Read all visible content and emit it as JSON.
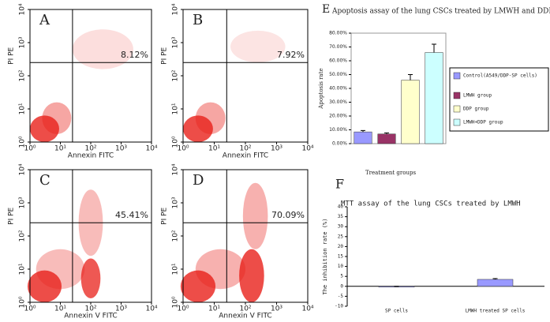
{
  "chart_data": [
    {
      "type": "flow",
      "panel": "A",
      "x_label": "Annexin FITC",
      "y_label": "PI PE",
      "annotation": "8.12%",
      "log_scale": true,
      "xlim": [
        1,
        10000
      ],
      "ylim": [
        1,
        10000
      ],
      "xticks": [
        {
          "value": 1,
          "label": "10⁰"
        },
        {
          "value": 10,
          "label": "10¹"
        },
        {
          "value": 100,
          "label": "10²"
        },
        {
          "value": 1000,
          "label": "10³"
        },
        {
          "value": 10000,
          "label": "10⁴"
        }
      ],
      "yticks": [
        {
          "value": 1,
          "label": "10⁰"
        },
        {
          "value": 10,
          "label": "10¹"
        },
        {
          "value": 100,
          "label": "10²"
        },
        {
          "value": 1000,
          "label": "10³"
        },
        {
          "value": 10000,
          "label": "10⁴"
        }
      ]
    },
    {
      "type": "flow",
      "panel": "B",
      "x_label": "Annexin FITC",
      "y_label": "PI PE",
      "annotation": "7.92%",
      "log_scale": true,
      "xlim": [
        1,
        10000
      ],
      "ylim": [
        1,
        10000
      ],
      "xticks": [
        {
          "value": 1,
          "label": "10⁰"
        },
        {
          "value": 10,
          "label": "10¹"
        },
        {
          "value": 100,
          "label": "10²"
        },
        {
          "value": 1000,
          "label": "10³"
        },
        {
          "value": 10000,
          "label": "10⁴"
        }
      ],
      "yticks": [
        {
          "value": 1,
          "label": "10⁰"
        },
        {
          "value": 10,
          "label": "10¹"
        },
        {
          "value": 100,
          "label": "10²"
        },
        {
          "value": 1000,
          "label": "10³"
        },
        {
          "value": 10000,
          "label": "10⁴"
        }
      ]
    },
    {
      "type": "flow",
      "panel": "C",
      "x_label": "Annexin V FITC",
      "y_label": "PI PE",
      "annotation": "45.41%",
      "log_scale": true,
      "xlim": [
        1,
        10000
      ],
      "ylim": [
        1,
        10000
      ],
      "xticks": [
        {
          "value": 1,
          "label": "10⁰"
        },
        {
          "value": 10,
          "label": "10¹"
        },
        {
          "value": 100,
          "label": "10²"
        },
        {
          "value": 1000,
          "label": "10³"
        },
        {
          "value": 10000,
          "label": "10⁴"
        }
      ],
      "yticks": [
        {
          "value": 1,
          "label": "10⁰"
        },
        {
          "value": 10,
          "label": "10¹"
        },
        {
          "value": 100,
          "label": "10²"
        },
        {
          "value": 1000,
          "label": "10³"
        },
        {
          "value": 10000,
          "label": "10⁴"
        }
      ]
    },
    {
      "type": "flow",
      "panel": "D",
      "x_label": "Annexin V FITC",
      "y_label": "PI PE",
      "annotation": "70.09%",
      "log_scale": true,
      "xlim": [
        1,
        10000
      ],
      "ylim": [
        1,
        10000
      ],
      "xticks": [
        {
          "value": 1,
          "label": "10⁰"
        },
        {
          "value": 10,
          "label": "10¹"
        },
        {
          "value": 100,
          "label": "10²"
        },
        {
          "value": 1000,
          "label": "10³"
        },
        {
          "value": 10000,
          "label": "10⁴"
        }
      ],
      "yticks": [
        {
          "value": 1,
          "label": "10⁰"
        },
        {
          "value": 10,
          "label": "10¹"
        },
        {
          "value": 100,
          "label": "10²"
        },
        {
          "value": 1000,
          "label": "10³"
        },
        {
          "value": 10000,
          "label": "10⁴"
        }
      ]
    },
    {
      "type": "bar",
      "panel": "E",
      "title": "Apoptosis assay of the lung CSCs treated by LMWH and DDP",
      "x_label": "Treatment groups",
      "y_label": "Apoptosis rate",
      "categories": [
        null
      ],
      "series": [
        {
          "name": "Control(A549/DDP-SP cells)",
          "color": "#9999ff",
          "values": [
            8.5
          ],
          "errors": [
            1
          ]
        },
        {
          "name": "LMWH group",
          "color": "#993366",
          "values": [
            7
          ],
          "errors": [
            0.8
          ]
        },
        {
          "name": "DDP group",
          "color": "#ffffcc",
          "values": [
            46
          ],
          "errors": [
            4
          ]
        },
        {
          "name": "LMWH+DDP group",
          "color": "#ccffff",
          "values": [
            66
          ],
          "errors": [
            6
          ]
        }
      ],
      "ylim": [
        0,
        80
      ],
      "yticks": [
        {
          "value": 0,
          "label": "0.00%"
        },
        {
          "value": 10,
          "label": "10.00%"
        },
        {
          "value": 20,
          "label": "20.00%"
        },
        {
          "value": 30,
          "label": "30.00%"
        },
        {
          "value": 40,
          "label": "40.00%"
        },
        {
          "value": 50,
          "label": "50.00%"
        },
        {
          "value": 60,
          "label": "60.00%"
        },
        {
          "value": 70,
          "label": "70.00%"
        },
        {
          "value": 80,
          "label": "80.00%"
        }
      ],
      "legend": "right"
    },
    {
      "type": "bar",
      "panel": "F",
      "title": "MTT assay of the lung CSCs treated by LMWH",
      "y_label": "The inhibition rate (%)",
      "categories": [
        "SP cells",
        "LMWH treated SP cells"
      ],
      "series": [
        {
          "color": "#9999ff",
          "values": [
            0,
            3.5
          ],
          "errors": [
            0,
            0.4
          ]
        }
      ],
      "ylim": [
        -10,
        40
      ],
      "yticks": [
        -10,
        -5,
        0,
        5,
        10,
        15,
        20,
        25,
        30,
        35,
        40
      ]
    }
  ]
}
